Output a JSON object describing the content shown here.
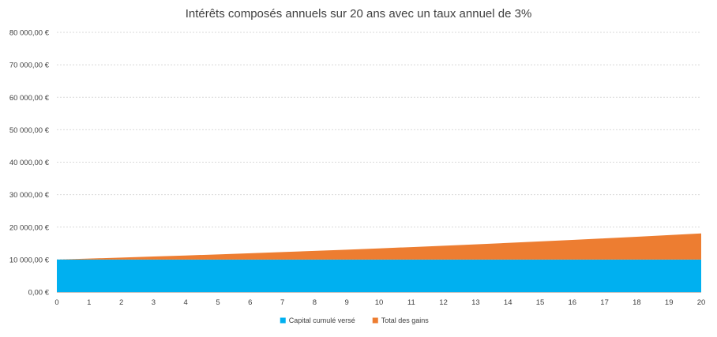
{
  "chart_data": {
    "type": "area",
    "stacked": true,
    "title": "Intérêts composés annuels sur 20 ans avec un taux annuel de 3%",
    "xlabel": "",
    "ylabel": "",
    "x": [
      0,
      1,
      2,
      3,
      4,
      5,
      6,
      7,
      8,
      9,
      10,
      11,
      12,
      13,
      14,
      15,
      16,
      17,
      18,
      19,
      20
    ],
    "series": [
      {
        "name": "Capital cumulé versé",
        "color": "#00b0f0",
        "values": [
          10000,
          10000,
          10000,
          10000,
          10000,
          10000,
          10000,
          10000,
          10000,
          10000,
          10000,
          10000,
          10000,
          10000,
          10000,
          10000,
          10000,
          10000,
          10000,
          10000,
          10000
        ]
      },
      {
        "name": "Total des gains",
        "color": "#ed7d31",
        "values": [
          0,
          300,
          609,
          927,
          1255,
          1593,
          1941,
          2299,
          2668,
          3048,
          3439,
          3842,
          4258,
          4685,
          5126,
          5580,
          6047,
          6528,
          7024,
          7535,
          8061
        ]
      }
    ],
    "yticks": [
      0,
      10000,
      20000,
      30000,
      40000,
      50000,
      60000,
      70000,
      80000
    ],
    "ytick_labels": [
      "0,00 €",
      "10 000,00 €",
      "20 000,00 €",
      "30 000,00 €",
      "40 000,00 €",
      "50 000,00 €",
      "60 000,00 €",
      "70 000,00 €",
      "80 000,00 €"
    ],
    "ylim": [
      0,
      80000
    ],
    "xlim": [
      0,
      20
    ],
    "grid": true,
    "legend_position": "bottom"
  }
}
